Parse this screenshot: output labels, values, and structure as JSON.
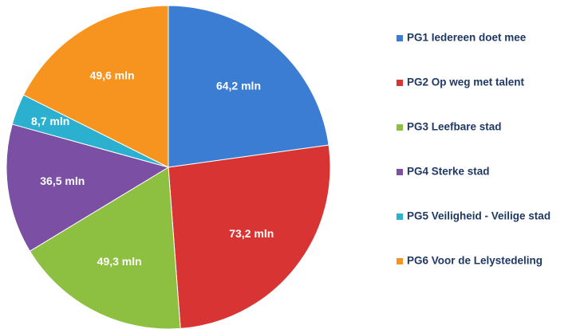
{
  "chart_data": {
    "type": "pie",
    "categories": [
      "PG1 Iedereen doet mee",
      "PG2 Op weg met talent",
      "PG3 Leefbare stad",
      "PG4 Sterke stad",
      "PG5 Veiligheid - Veilige stad",
      "PG6 Voor de Lelystedeling"
    ],
    "values": [
      64.2,
      73.2,
      49.3,
      36.5,
      8.7,
      49.6
    ],
    "value_labels": [
      "64,2 mln",
      "73,2 mln",
      "49,3 mln",
      "36,5 mln",
      "8,7 mln",
      "49,6 mln"
    ],
    "colors": [
      "#3b7dd2",
      "#d83434",
      "#8dbf41",
      "#7a4fa4",
      "#2bb0d0",
      "#f7941f"
    ],
    "legend": "right"
  }
}
